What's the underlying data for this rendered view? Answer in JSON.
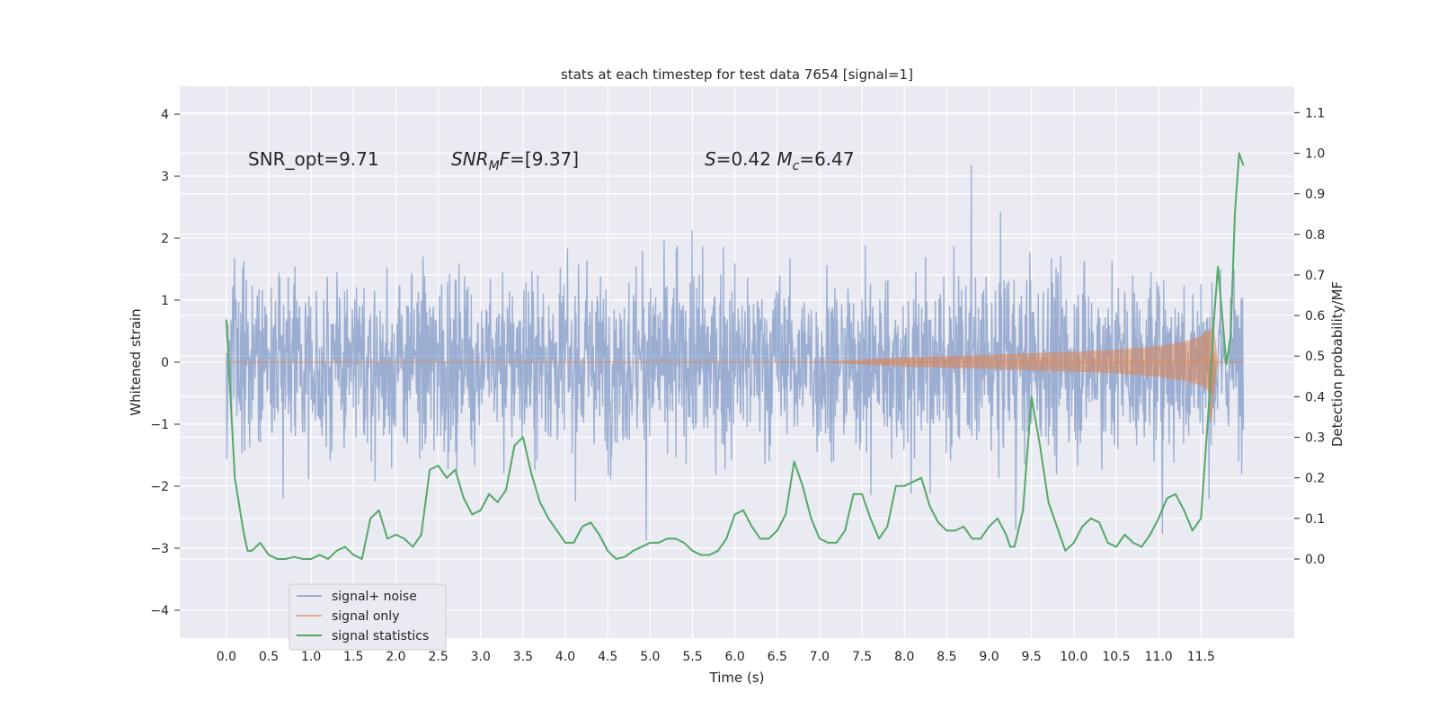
{
  "chart_data": {
    "type": "line",
    "title": "stats at each timestep for test data 7654 [signal=1]",
    "xlabel": "Time (s)",
    "ylabel": "Whitened strain",
    "ylabel_right": "Detection probability/MF",
    "xlim": [
      -0.55,
      12.6
    ],
    "ylim": [
      -4.45,
      4.45
    ],
    "ylim_right": [
      -0.195,
      1.165
    ],
    "x_ticks": [
      "0.0",
      "0.5",
      "1.0",
      "1.5",
      "2.0",
      "2.5",
      "3.0",
      "3.5",
      "4.0",
      "4.5",
      "5.0",
      "5.5",
      "6.0",
      "6.5",
      "7.0",
      "7.5",
      "8.0",
      "8.5",
      "9.0",
      "9.5",
      "10.0",
      "10.5",
      "11.0",
      "11.5"
    ],
    "y_ticks": [
      "−4",
      "−3",
      "−2",
      "−1",
      "0",
      "1",
      "2",
      "3",
      "4"
    ],
    "y_ticks_right": [
      "0.0",
      "0.1",
      "0.2",
      "0.3",
      "0.4",
      "0.5",
      "0.6",
      "0.7",
      "0.8",
      "0.9",
      "1.0",
      "1.1"
    ],
    "grid": true,
    "legend_position": "lower-left",
    "annotations": [
      {
        "text": "SNR_opt=9.71"
      },
      {
        "text": "SNR_MF=[9.37]"
      },
      {
        "text": "S=0.42   M_c=6.47"
      }
    ],
    "series": [
      {
        "name": "signal+ noise",
        "color": "#4c72b0",
        "x_range": [
          0.0,
          12.0
        ],
        "y_range": [
          -4.1,
          4.1
        ],
        "description_free": true
      },
      {
        "name": "signal only",
        "color": "#dd8452",
        "envelope": {
          "t": [
            7.0,
            8.0,
            9.0,
            10.0,
            10.5,
            11.0,
            11.3,
            11.5,
            11.6,
            11.65,
            11.7
          ],
          "amp": [
            0.0,
            0.08,
            0.12,
            0.17,
            0.2,
            0.26,
            0.33,
            0.42,
            0.52,
            0.6,
            0.0
          ]
        }
      },
      {
        "name": "signal statistics",
        "color": "#55a868",
        "axis": "right",
        "x": [
          0.0,
          0.1,
          0.2,
          0.25,
          0.3,
          0.4,
          0.5,
          0.6,
          0.7,
          0.8,
          0.9,
          1.0,
          1.1,
          1.2,
          1.3,
          1.4,
          1.5,
          1.6,
          1.7,
          1.8,
          1.9,
          2.0,
          2.1,
          2.2,
          2.3,
          2.4,
          2.5,
          2.6,
          2.7,
          2.8,
          2.9,
          3.0,
          3.1,
          3.2,
          3.3,
          3.4,
          3.5,
          3.6,
          3.7,
          3.8,
          3.9,
          4.0,
          4.1,
          4.2,
          4.3,
          4.4,
          4.5,
          4.6,
          4.7,
          4.8,
          4.9,
          5.0,
          5.1,
          5.2,
          5.3,
          5.4,
          5.5,
          5.6,
          5.7,
          5.8,
          5.9,
          6.0,
          6.1,
          6.2,
          6.3,
          6.4,
          6.5,
          6.6,
          6.7,
          6.8,
          6.9,
          7.0,
          7.1,
          7.2,
          7.3,
          7.4,
          7.5,
          7.6,
          7.7,
          7.8,
          7.9,
          8.0,
          8.1,
          8.2,
          8.3,
          8.4,
          8.5,
          8.6,
          8.7,
          8.8,
          8.9,
          9.0,
          9.1,
          9.2,
          9.25,
          9.3,
          9.4,
          9.5,
          9.6,
          9.7,
          9.8,
          9.9,
          10.0,
          10.1,
          10.2,
          10.3,
          10.4,
          10.5,
          10.6,
          10.7,
          10.8,
          10.9,
          11.0,
          11.1,
          11.2,
          11.3,
          11.4,
          11.5,
          11.6,
          11.65,
          11.7,
          11.75,
          11.8,
          11.85,
          11.9,
          11.95,
          12.0
        ],
        "y": [
          0.59,
          0.2,
          0.07,
          0.02,
          0.02,
          0.04,
          0.01,
          0.0,
          0.0,
          0.005,
          0.0,
          0.0,
          0.01,
          0.0,
          0.02,
          0.03,
          0.01,
          0.0,
          0.1,
          0.12,
          0.05,
          0.06,
          0.05,
          0.03,
          0.06,
          0.22,
          0.23,
          0.2,
          0.22,
          0.15,
          0.11,
          0.12,
          0.16,
          0.14,
          0.17,
          0.28,
          0.3,
          0.21,
          0.14,
          0.1,
          0.07,
          0.04,
          0.04,
          0.08,
          0.09,
          0.06,
          0.02,
          0.0,
          0.005,
          0.02,
          0.03,
          0.04,
          0.04,
          0.05,
          0.05,
          0.04,
          0.02,
          0.01,
          0.01,
          0.02,
          0.05,
          0.11,
          0.12,
          0.08,
          0.05,
          0.05,
          0.07,
          0.11,
          0.24,
          0.18,
          0.1,
          0.05,
          0.04,
          0.04,
          0.07,
          0.16,
          0.16,
          0.1,
          0.05,
          0.08,
          0.18,
          0.18,
          0.19,
          0.2,
          0.13,
          0.09,
          0.07,
          0.07,
          0.08,
          0.05,
          0.05,
          0.08,
          0.1,
          0.06,
          0.03,
          0.03,
          0.12,
          0.4,
          0.28,
          0.14,
          0.08,
          0.02,
          0.04,
          0.08,
          0.1,
          0.09,
          0.04,
          0.03,
          0.06,
          0.04,
          0.03,
          0.06,
          0.1,
          0.15,
          0.16,
          0.12,
          0.07,
          0.1,
          0.4,
          0.58,
          0.72,
          0.6,
          0.48,
          0.55,
          0.85,
          1.0,
          0.97
        ]
      }
    ]
  },
  "legend": {
    "items": [
      "signal+ noise",
      "signal only",
      "signal statistics"
    ]
  }
}
